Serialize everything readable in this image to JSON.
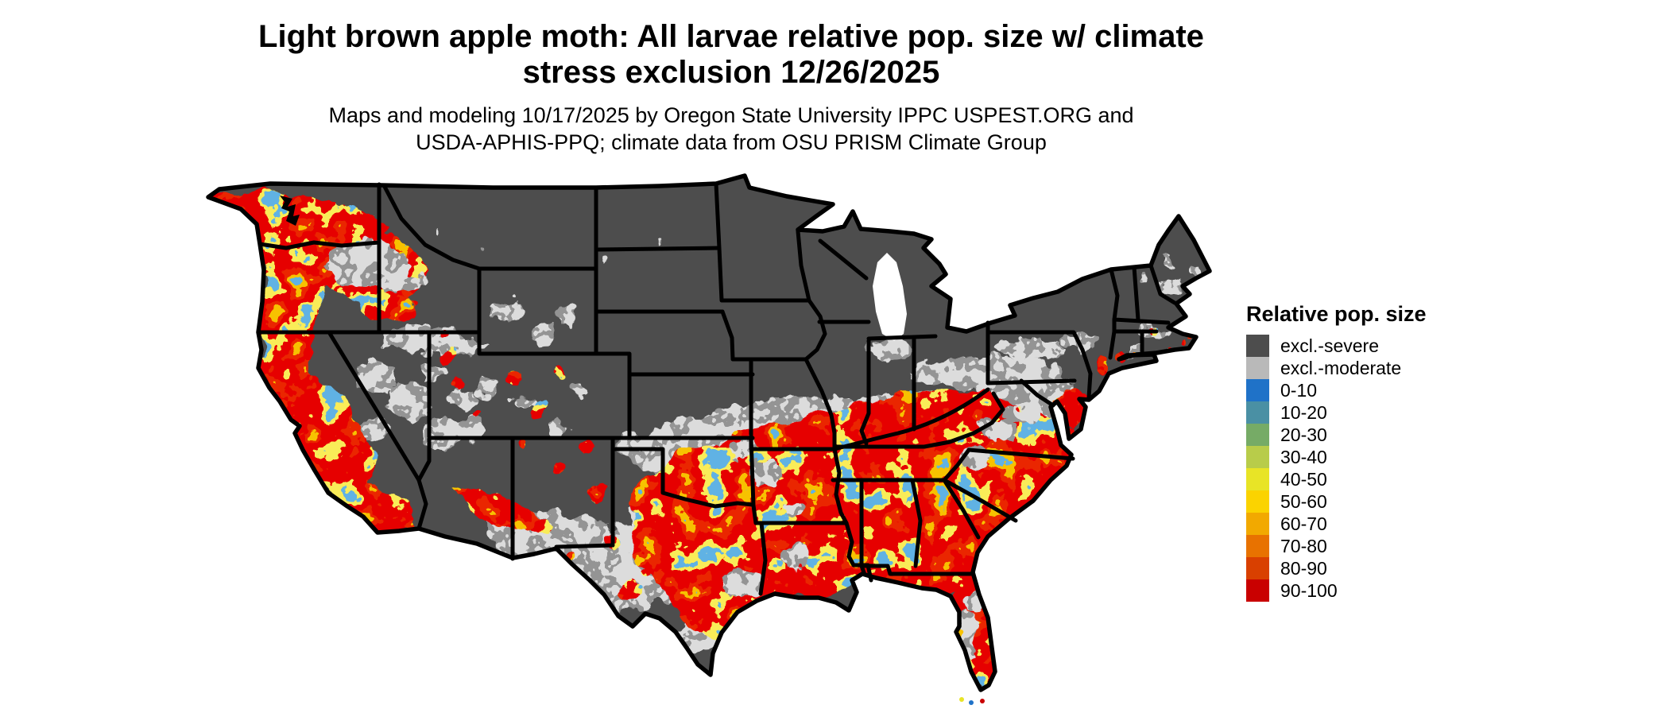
{
  "title": {
    "line1": "Light brown apple moth: All larvae relative pop. size w/ climate",
    "line2": "stress exclusion 12/26/2025"
  },
  "subtitle": {
    "line1": "Maps and modeling 10/17/2025 by Oregon State University IPPC USPEST.ORG and",
    "line2": "USDA-APHIS-PPQ; climate data from OSU PRISM Climate Group"
  },
  "legend": {
    "title": "Relative pop. size",
    "items": [
      {
        "label": "excl.-severe",
        "color": "#4d4d4d"
      },
      {
        "label": "excl.-moderate",
        "color": "#b9b9b9"
      },
      {
        "label": "0-10",
        "color": "#1f72c8"
      },
      {
        "label": "10-20",
        "color": "#4a90a4"
      },
      {
        "label": "20-30",
        "color": "#76ab66"
      },
      {
        "label": "30-40",
        "color": "#b8cc4a"
      },
      {
        "label": "40-50",
        "color": "#e8e426"
      },
      {
        "label": "50-60",
        "color": "#fbd300"
      },
      {
        "label": "60-70",
        "color": "#f2a900"
      },
      {
        "label": "70-80",
        "color": "#e87200"
      },
      {
        "label": "80-90",
        "color": "#d94000"
      },
      {
        "label": "90-100",
        "color": "#c90000"
      }
    ]
  },
  "map": {
    "background": "#ffffff",
    "border_color": "#000000",
    "severe_color": "#4d4d4d",
    "moderate_color": "#b9b9b9"
  }
}
